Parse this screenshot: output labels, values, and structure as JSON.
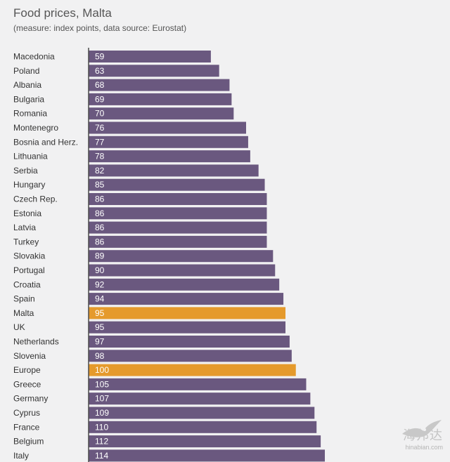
{
  "header": {
    "title": "Food prices, Malta",
    "subtitle": "(measure: index points, data source: Eurostat)"
  },
  "colors": {
    "bar_default": "#6a587f",
    "bar_highlight": "#e59a2c",
    "background": "#f1f1f2",
    "axis": "#4a4a4a"
  },
  "watermark": {
    "brand": "海邦达",
    "url": "hinabian.com"
  },
  "chart_data": {
    "type": "bar",
    "orientation": "horizontal",
    "title": "Food prices, Malta",
    "subtitle": "(measure: index points, data source: Eurostat)",
    "xlabel": "",
    "ylabel": "",
    "xlim": [
      0,
      114
    ],
    "grid": false,
    "categories": [
      "Macedonia",
      "Poland",
      "Albania",
      "Bulgaria",
      "Romania",
      "Montenegro",
      "Bosnia and Herz.",
      "Lithuania",
      "Serbia",
      "Hungary",
      "Czech Rep.",
      "Estonia",
      "Latvia",
      "Turkey",
      "Slovakia",
      "Portugal",
      "Croatia",
      "Spain",
      "Malta",
      "UK",
      "Netherlands",
      "Slovenia",
      "Europe",
      "Greece",
      "Germany",
      "Cyprus",
      "France",
      "Belgium",
      "Italy"
    ],
    "values": [
      59,
      63,
      68,
      69,
      70,
      76,
      77,
      78,
      82,
      85,
      86,
      86,
      86,
      86,
      89,
      90,
      92,
      94,
      95,
      95,
      97,
      98,
      100,
      105,
      107,
      109,
      110,
      112,
      114
    ],
    "highlighted": [
      "Malta",
      "Europe"
    ]
  }
}
